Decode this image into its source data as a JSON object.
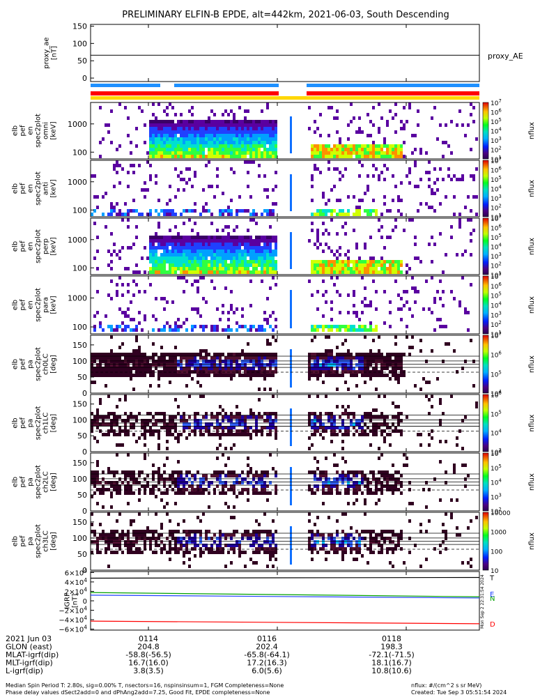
{
  "title": "PRELIMINARY ELFIN-B EPDE, alt=442km, 2021-06-03, South Descending",
  "colors": {
    "proxy_line": "#000000",
    "fgm_bar": "#1e90ff",
    "ind_red": "#ff0000",
    "ind_yellow": "#ffd700",
    "gap_fill": "#ffffff",
    "grf_n": "#00a000",
    "grf_e": "#1e40ff",
    "grf_d": "#ff0000"
  },
  "chart_data": [
    {
      "type": "line",
      "panel": "proxy_ae",
      "ylabel_lines": [
        "proxy_ae",
        "[nT]"
      ],
      "yticks": [
        "150",
        "100",
        "50",
        "0"
      ],
      "ylim": [
        -10,
        155
      ],
      "series": [
        {
          "name": "proxy_AE",
          "values": [
            66,
            66
          ]
        }
      ]
    },
    {
      "type": "heatmap",
      "panel": "elb_pef_en_spec2plot_omni",
      "ylabel_lines": [
        "elb",
        "pef",
        "en",
        "spec2plot",
        "omni",
        "[keV]"
      ],
      "yscale": "log",
      "yticks": [
        "1000",
        "100"
      ],
      "colorbar_ticks": [
        "10^7",
        "10^6",
        "10^5",
        "10^4",
        "10^3",
        "10^2",
        "10^1"
      ],
      "colorbar_label": "nflux"
    },
    {
      "type": "heatmap",
      "panel": "elb_pef_en_spec2plot_anti",
      "ylabel_lines": [
        "elb",
        "pef",
        "en",
        "spec2plot",
        "anti",
        "[keV]"
      ],
      "yscale": "log",
      "yticks": [
        "1000",
        "100"
      ],
      "colorbar_ticks": [
        "10^7",
        "10^6",
        "10^5",
        "10^4",
        "10^3",
        "10^2",
        "10^1"
      ],
      "colorbar_label": "nflux"
    },
    {
      "type": "heatmap",
      "panel": "elb_pef_en_spec2plot_perp",
      "ylabel_lines": [
        "elb",
        "pef",
        "en",
        "spec2plot",
        "perp",
        "[keV]"
      ],
      "yscale": "log",
      "yticks": [
        "1000",
        "100"
      ],
      "colorbar_ticks": [
        "10^7",
        "10^6",
        "10^5",
        "10^4",
        "10^3",
        "10^2",
        "10^1"
      ],
      "colorbar_label": "nflux"
    },
    {
      "type": "heatmap",
      "panel": "elb_pef_en_spec2plot_para",
      "ylabel_lines": [
        "elb",
        "pef",
        "en",
        "spec2plot",
        "para",
        "[keV]"
      ],
      "yscale": "log",
      "yticks": [
        "1000",
        "100"
      ],
      "colorbar_ticks": [
        "10^7",
        "10^6",
        "10^5",
        "10^4",
        "10^3",
        "10^2",
        "10^1"
      ],
      "colorbar_label": "nflux"
    },
    {
      "type": "heatmap",
      "panel": "elb_pef_pa_spec2plot_ch0LC",
      "ylabel_lines": [
        "elb",
        "pef",
        "pa",
        "spec2plot",
        "ch0LC",
        "[deg]"
      ],
      "yticks": [
        "150",
        "100",
        "50",
        "0"
      ],
      "ylim": [
        0,
        180
      ],
      "ref_lines": [
        115,
        100,
        90,
        80
      ],
      "dashed_line": 65,
      "colorbar_ticks": [
        "10^7",
        "10^6",
        "10^5",
        "10^4"
      ],
      "colorbar_label": "nflux"
    },
    {
      "type": "heatmap",
      "panel": "elb_pef_pa_spec2plot_ch1LC",
      "ylabel_lines": [
        "elb",
        "pef",
        "pa",
        "spec2plot",
        "ch1LC",
        "[deg]"
      ],
      "yticks": [
        "150",
        "100",
        "50",
        "0"
      ],
      "ylim": [
        0,
        180
      ],
      "ref_lines": [
        115,
        100,
        90,
        80
      ],
      "dashed_line": 65,
      "colorbar_ticks": [
        "10^6",
        "10^5",
        "10^4",
        "10^3"
      ],
      "colorbar_label": "nflux"
    },
    {
      "type": "heatmap",
      "panel": "elb_pef_pa_spec2plot_ch2LC",
      "ylabel_lines": [
        "elb",
        "pef",
        "pa",
        "spec2plot",
        "ch2LC",
        "[deg]"
      ],
      "yticks": [
        "150",
        "100",
        "50",
        "0"
      ],
      "ylim": [
        0,
        180
      ],
      "ref_lines": [
        115,
        100,
        90,
        80
      ],
      "dashed_line": 65,
      "colorbar_ticks": [
        "10^6",
        "10^5",
        "10^4",
        "10^3",
        "10^2"
      ],
      "colorbar_label": "nflux"
    },
    {
      "type": "heatmap",
      "panel": "elb_pef_pa_spec2plot_ch3LC",
      "ylabel_lines": [
        "elb",
        "pef",
        "pa",
        "spec2plot",
        "ch3LC",
        "[deg]"
      ],
      "yticks": [
        "150",
        "100",
        "50",
        "0"
      ],
      "ylim": [
        0,
        180
      ],
      "ref_lines": [
        115,
        100,
        90,
        80
      ],
      "dashed_line": 65,
      "colorbar_ticks": [
        "10000",
        "1000",
        "100",
        "10"
      ],
      "colorbar_label": "nflux"
    },
    {
      "type": "line",
      "panel": "IGRF",
      "ylabel_lines": [
        "IGRF",
        "[nT]"
      ],
      "yticks": [
        "6×10^4",
        "4×10^4",
        "2×10^4",
        "0",
        "−2×10^4",
        "−4×10^4",
        "−6×10^4"
      ],
      "ylim": [
        -62000,
        62000
      ],
      "series": [
        {
          "name": "T",
          "values": [
            48000,
            49500
          ]
        },
        {
          "name": "N",
          "values": [
            17500,
            8500
          ]
        },
        {
          "name": "E",
          "values": [
            12000,
            6000
          ]
        },
        {
          "name": "D",
          "values": [
            -43000,
            -48500
          ]
        }
      ]
    }
  ],
  "ae_label": "proxy_AE",
  "side_stamp": "Mon Sep  2 22:31:54 2024",
  "ephemeris": {
    "rows": [
      {
        "label": "2021 Jun 03",
        "values": [
          "0114",
          "0116",
          "0118"
        ]
      },
      {
        "label": "GLON (east)",
        "values": [
          "204.8",
          "202.4",
          "198.3"
        ]
      },
      {
        "label": "MLAT-igrf(dip)",
        "values": [
          "-58.8(-56.5)",
          "-65.8(-64.1)",
          "-72.1(-71.5)"
        ]
      },
      {
        "label": "MLT-igrf(dip)",
        "values": [
          "16.7(16.0)",
          "17.2(16.3)",
          "18.1(16.7)"
        ]
      },
      {
        "label": "L-igrf(dip)",
        "values": [
          "3.8(3.5)",
          "6.0(5.6)",
          "10.8(10.6)"
        ]
      }
    ]
  },
  "footer": {
    "line1": "Median Spin Period T: 2.80s, sig=0.00% T, nsectors=16, nspinsinsum=1, FGM Completeness=None",
    "line2": "Phase delay values dSect2add=0 and dPhAng2add=7.25, Good Fit, EPDE completeness=None",
    "right1": "nflux: #/(cm^2 s sr MeV)",
    "right2": "Created: Tue Sep  3 05:51:54 2024"
  }
}
